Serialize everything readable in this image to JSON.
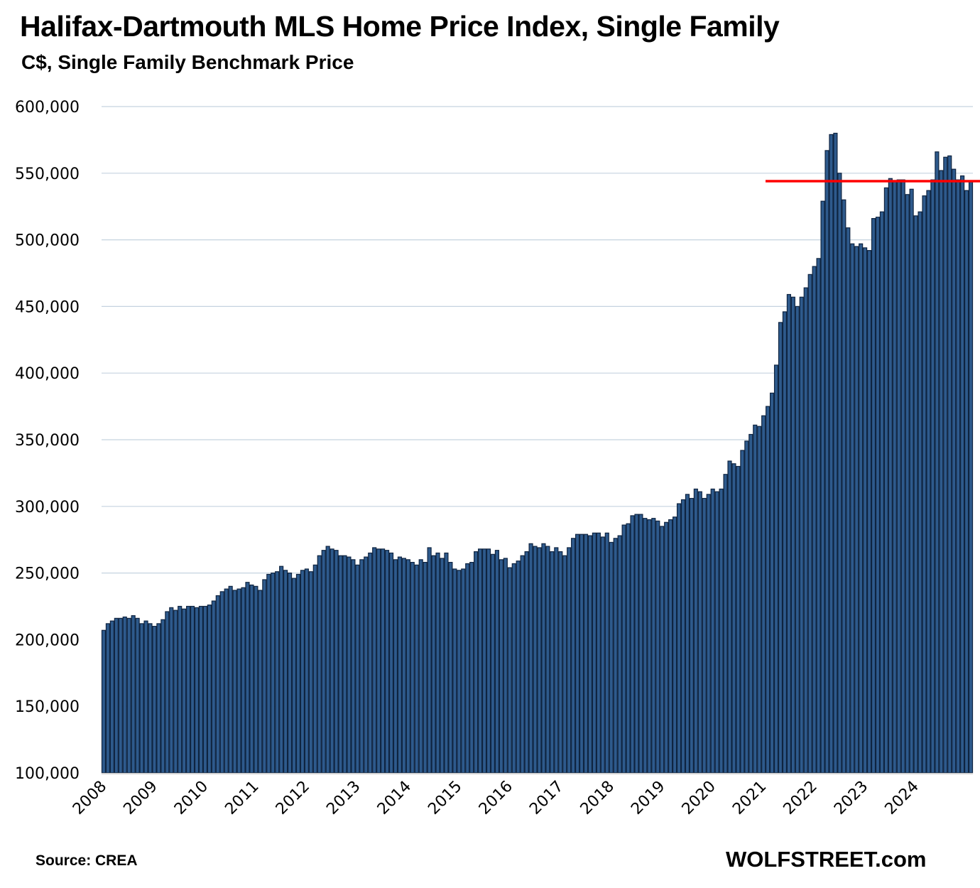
{
  "chart_data": {
    "type": "bar",
    "title": "Halifax-Dartmouth MLS Home Price Index, Single Family",
    "subtitle": "C$, Single Family Benchmark Price",
    "xlabel": "",
    "ylabel": "",
    "ylim": [
      100000,
      600000
    ],
    "yticks": [
      100000,
      150000,
      200000,
      250000,
      300000,
      350000,
      400000,
      450000,
      500000,
      550000,
      600000
    ],
    "ytick_labels": [
      "100,000",
      "150,000",
      "200,000",
      "250,000",
      "300,000",
      "350,000",
      "400,000",
      "450,000",
      "500,000",
      "550,000",
      "600,000"
    ],
    "xtick_labels": [
      "2008",
      "2009",
      "2010",
      "2011",
      "2012",
      "2013",
      "2014",
      "2015",
      "2016",
      "2017",
      "2018",
      "2019",
      "2020",
      "2021",
      "2022",
      "2023",
      "2024"
    ],
    "grid": true,
    "start": "2008-01",
    "frequency": "monthly",
    "reference_line": {
      "value": 544000,
      "color": "#ff0000"
    },
    "bar_color": "#2e5a8c",
    "bar_edge_color": "#0f2440",
    "values": [
      207000,
      212000,
      214000,
      216000,
      216000,
      217000,
      216000,
      218000,
      216000,
      212000,
      214000,
      212000,
      210000,
      212000,
      215000,
      221000,
      224000,
      222000,
      225000,
      223000,
      225000,
      225000,
      224000,
      225000,
      225000,
      226000,
      229000,
      233000,
      236000,
      238000,
      240000,
      237000,
      238000,
      239000,
      243000,
      241000,
      240000,
      237000,
      245000,
      249000,
      250000,
      251000,
      255000,
      252000,
      250000,
      246000,
      249000,
      252000,
      253000,
      251000,
      256000,
      263000,
      267000,
      270000,
      268000,
      267000,
      263000,
      263000,
      262000,
      260000,
      256000,
      260000,
      262000,
      265000,
      269000,
      268000,
      268000,
      267000,
      265000,
      260000,
      262000,
      261000,
      260000,
      258000,
      256000,
      260000,
      258000,
      269000,
      263000,
      265000,
      261000,
      265000,
      258000,
      253000,
      252000,
      253000,
      257000,
      258000,
      266000,
      268000,
      268000,
      268000,
      264000,
      267000,
      260000,
      261000,
      254000,
      257000,
      259000,
      263000,
      266000,
      272000,
      270000,
      269000,
      272000,
      270000,
      266000,
      269000,
      266000,
      263000,
      269000,
      276000,
      279000,
      279000,
      279000,
      278000,
      280000,
      280000,
      277000,
      280000,
      273000,
      276000,
      278000,
      286000,
      287000,
      293000,
      294000,
      294000,
      291000,
      290000,
      291000,
      289000,
      285000,
      288000,
      290000,
      292000,
      302000,
      305000,
      309000,
      306000,
      313000,
      311000,
      306000,
      309000,
      313000,
      311000,
      313000,
      324000,
      334000,
      332000,
      330000,
      342000,
      349000,
      354000,
      361000,
      360000,
      368000,
      375000,
      385000,
      406000,
      438000,
      446000,
      459000,
      457000,
      450000,
      457000,
      464000,
      474000,
      480000,
      486000,
      529000,
      567000,
      579000,
      580000,
      550000,
      530000,
      509000,
      497000,
      495000,
      497000,
      494000,
      492000,
      516000,
      517000,
      521000,
      539000,
      546000,
      544000,
      545000,
      545000,
      534000,
      538000,
      518000,
      521000,
      533000,
      537000,
      545000,
      566000,
      552000,
      562000,
      563000,
      553000,
      545000,
      548000,
      537000,
      544000
    ]
  },
  "footer": {
    "source": "Source: CREA",
    "brand": "WOLFSTREET.com"
  }
}
